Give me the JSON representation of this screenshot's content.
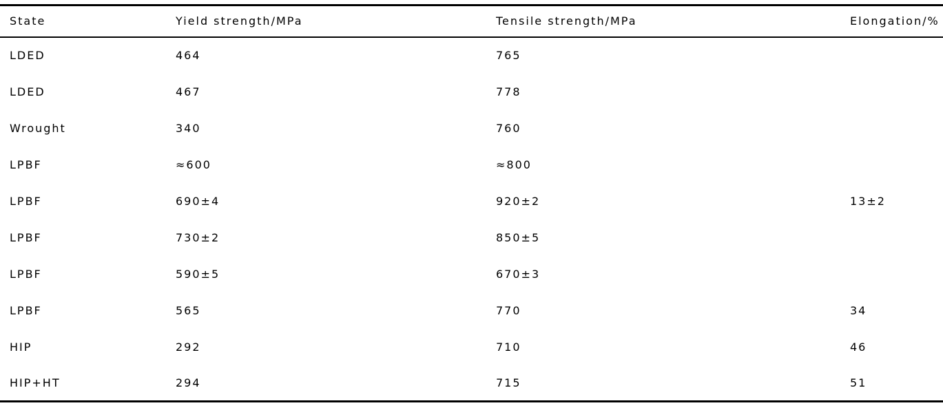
{
  "colors": {
    "background": "#ffffff",
    "text": "#000000",
    "rule": "#000000"
  },
  "table": {
    "columns": [
      "State",
      "Yield strength/MPa",
      "Tensile strength/MPa",
      "Elongation/%"
    ],
    "rows": [
      {
        "state": "LDED",
        "yield": "464",
        "tensile": "765",
        "elongation": ""
      },
      {
        "state": "LDED",
        "yield": "467",
        "tensile": "778",
        "elongation": ""
      },
      {
        "state": "Wrought",
        "yield": "340",
        "tensile": "760",
        "elongation": ""
      },
      {
        "state": "LPBF",
        "yield": "≈600",
        "tensile": "≈800",
        "elongation": ""
      },
      {
        "state": "LPBF",
        "yield": "690±4",
        "tensile": "920±2",
        "elongation": "13±2"
      },
      {
        "state": "LPBF",
        "yield": "730±2",
        "tensile": "850±5",
        "elongation": ""
      },
      {
        "state": "LPBF",
        "yield": "590±5",
        "tensile": "670±3",
        "elongation": ""
      },
      {
        "state": "LPBF",
        "yield": "565",
        "tensile": "770",
        "elongation": "34"
      },
      {
        "state": "HIP",
        "yield": "292",
        "tensile": "710",
        "elongation": "46"
      },
      {
        "state": "HIP+HT",
        "yield": "294",
        "tensile": "715",
        "elongation": "51"
      }
    ]
  }
}
